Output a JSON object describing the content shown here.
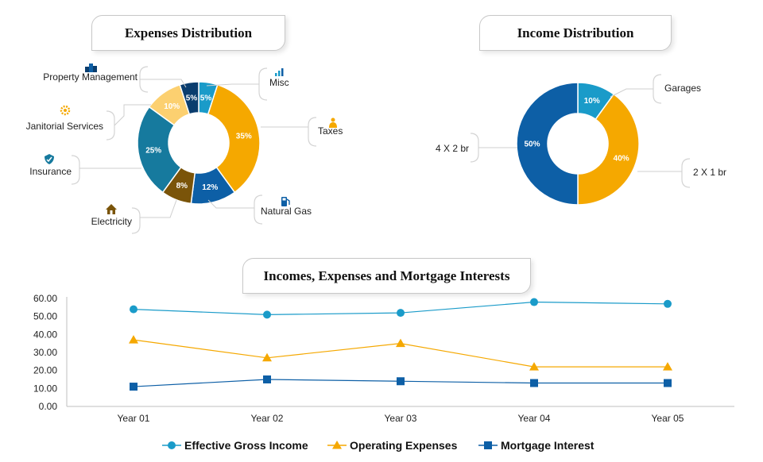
{
  "titles": {
    "expenses": "Expenses Distribution",
    "income": "Income Distribution",
    "line": "Incomes, Expenses and Mortgage Interests"
  },
  "chart_data": [
    {
      "type": "pie",
      "title": "Expenses Distribution",
      "slices": [
        {
          "label": "Misc",
          "value": 5,
          "pct_label": "5%",
          "color": "#1a9bc9",
          "icon": "bar-chart-icon"
        },
        {
          "label": "Taxes",
          "value": 35,
          "pct_label": "35%",
          "color": "#f5a800",
          "icon": "person-money-icon"
        },
        {
          "label": "Natural Gas",
          "value": 12,
          "pct_label": "12%",
          "color": "#0d5fa6",
          "icon": "gas-pump-icon"
        },
        {
          "label": "Electricity",
          "value": 8,
          "pct_label": "8%",
          "color": "#7a5409",
          "icon": "house-icon"
        },
        {
          "label": "Insurance",
          "value": 25,
          "pct_label": "25%",
          "color": "#167a9e",
          "icon": "shield-hand-icon"
        },
        {
          "label": "Janitorial Services",
          "value": 10,
          "pct_label": "10%",
          "color": "#fcd070",
          "icon": "gear-icon"
        },
        {
          "label": "Property Management",
          "value": 5,
          "pct_label": "5%",
          "color": "#0a3d6e",
          "icon": "buildings-icon"
        }
      ]
    },
    {
      "type": "pie",
      "title": "Income Distribution",
      "slices": [
        {
          "label": "Garages",
          "value": 10,
          "pct_label": "10%",
          "color": "#1a9bc9"
        },
        {
          "label": "2 X 1 br",
          "value": 40,
          "pct_label": "40%",
          "color": "#f5a800"
        },
        {
          "label": "4 X 2 br",
          "value": 50,
          "pct_label": "50%",
          "color": "#0d5fa6"
        }
      ]
    },
    {
      "type": "line",
      "title": "Incomes, Expenses and Mortgage Interests",
      "categories": [
        "Year 01",
        "Year 02",
        "Year 03",
        "Year 04",
        "Year 05"
      ],
      "ylim": [
        0,
        60
      ],
      "yticks": [
        "0.00",
        "10.00",
        "20.00",
        "30.00",
        "40.00",
        "50.00",
        "60.00"
      ],
      "legend_position": "bottom",
      "series": [
        {
          "name": "Effective Gross Income",
          "values": [
            54,
            51,
            52,
            58,
            57
          ],
          "color": "#1a9bc9",
          "marker": "circle"
        },
        {
          "name": "Operating Expenses",
          "values": [
            37,
            27,
            35,
            22,
            22
          ],
          "color": "#f5a800",
          "marker": "triangle"
        },
        {
          "name": "Mortgage Interest",
          "values": [
            11,
            15,
            14,
            13,
            13
          ],
          "color": "#0d5fa6",
          "marker": "square"
        }
      ]
    }
  ]
}
